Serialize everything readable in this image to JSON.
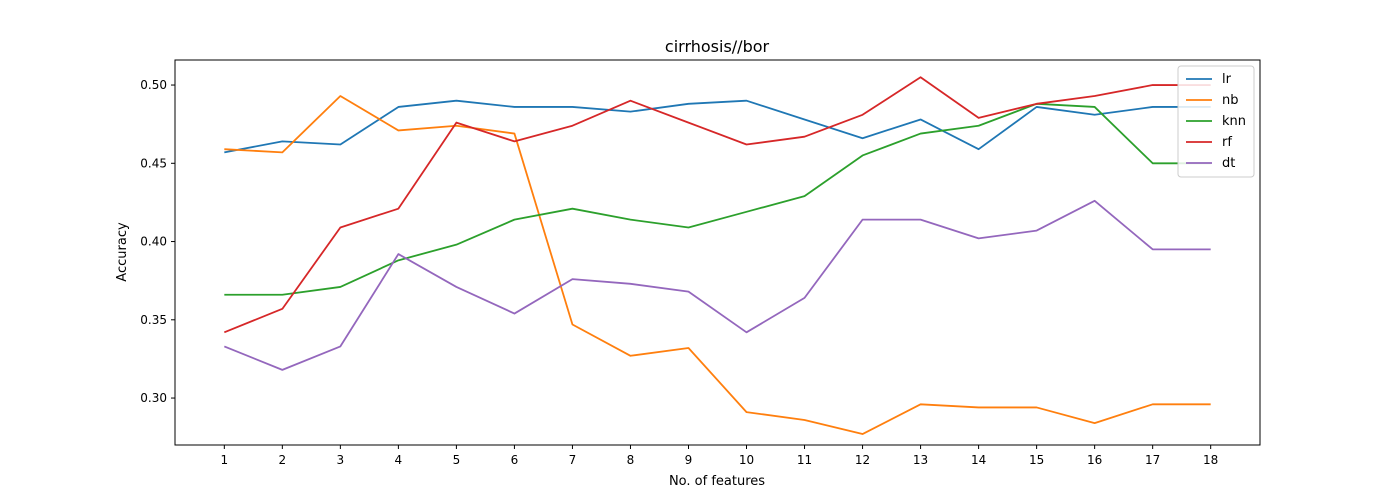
{
  "chart_data": {
    "type": "line",
    "title": "cirrhosis//bor",
    "xlabel": "No. of features",
    "ylabel": "Accuracy",
    "x": [
      1,
      2,
      3,
      4,
      5,
      6,
      7,
      8,
      9,
      10,
      11,
      12,
      13,
      14,
      15,
      16,
      17,
      18
    ],
    "xlim": [
      0.15,
      18.85
    ],
    "ylim": [
      0.27,
      0.516
    ],
    "yticks": [
      0.3,
      0.35,
      0.4,
      0.45,
      0.5
    ],
    "ytick_labels": [
      "0.30",
      "0.35",
      "0.40",
      "0.45",
      "0.50"
    ],
    "grid": false,
    "legend_position": "top-right",
    "series": [
      {
        "name": "lr",
        "color": "#1f77b4",
        "values": [
          0.457,
          0.464,
          0.462,
          0.486,
          0.49,
          0.486,
          0.486,
          0.483,
          0.488,
          0.49,
          0.478,
          0.466,
          0.478,
          0.459,
          0.486,
          0.481,
          0.486,
          0.486
        ]
      },
      {
        "name": "nb",
        "color": "#ff7f0e",
        "values": [
          0.459,
          0.457,
          0.493,
          0.471,
          0.474,
          0.469,
          0.347,
          0.327,
          0.332,
          0.291,
          0.286,
          0.277,
          0.296,
          0.294,
          0.294,
          0.284,
          0.296,
          0.296
        ]
      },
      {
        "name": "knn",
        "color": "#2ca02c",
        "values": [
          0.366,
          0.366,
          0.371,
          0.388,
          0.398,
          0.414,
          0.421,
          0.414,
          0.409,
          0.419,
          0.429,
          0.455,
          0.469,
          0.474,
          0.488,
          0.486,
          0.45,
          0.45
        ]
      },
      {
        "name": "rf",
        "color": "#d62728",
        "values": [
          0.342,
          0.357,
          0.409,
          0.421,
          0.476,
          0.464,
          0.474,
          0.49,
          0.476,
          0.462,
          0.467,
          0.481,
          0.505,
          0.479,
          0.488,
          0.493,
          0.5,
          0.5
        ]
      },
      {
        "name": "dt",
        "color": "#9467bd",
        "values": [
          0.333,
          0.318,
          0.333,
          0.392,
          0.371,
          0.354,
          0.376,
          0.373,
          0.368,
          0.342,
          0.364,
          0.414,
          0.414,
          0.402,
          0.407,
          0.426,
          0.395,
          0.395
        ]
      }
    ]
  }
}
